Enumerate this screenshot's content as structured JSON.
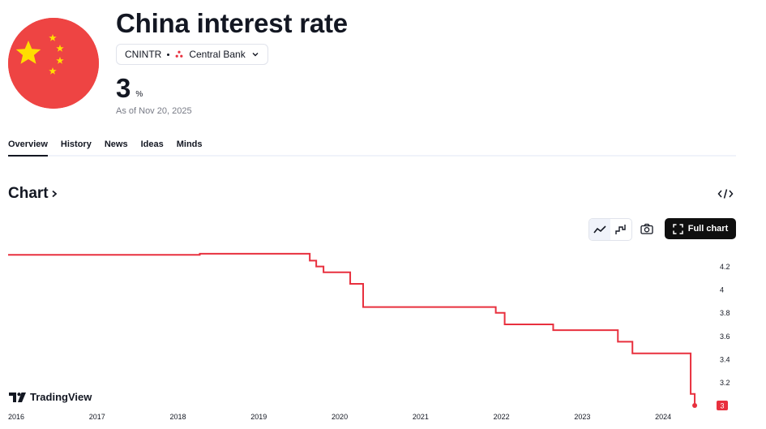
{
  "header": {
    "title": "China interest rate",
    "symbol": "CNINTR",
    "source": "Central Bank",
    "value": "3",
    "unit": "%",
    "as_of": "As of Nov 20, 2025"
  },
  "tabs": [
    {
      "label": "Overview",
      "active": true
    },
    {
      "label": "History",
      "active": false
    },
    {
      "label": "News",
      "active": false
    },
    {
      "label": "Ideas",
      "active": false
    },
    {
      "label": "Minds",
      "active": false
    }
  ],
  "section": {
    "title": "Chart"
  },
  "toolbar": {
    "full_chart_label": "Full chart"
  },
  "branding": {
    "logo_text": "TradingView"
  },
  "colors": {
    "line": "#e8303e",
    "flag_red": "#ee4443",
    "flag_star": "#ffde00"
  },
  "chart_data": {
    "type": "line",
    "step": true,
    "x_ticks": [
      "2016",
      "2017",
      "2018",
      "2019",
      "2020",
      "2021",
      "2022",
      "2023",
      "2024"
    ],
    "y_ticks": [
      "3.2",
      "3.4",
      "3.6",
      "3.8",
      "4",
      "4.2"
    ],
    "xlim": [
      2016.0,
      2024.6
    ],
    "ylim": [
      3.0,
      4.4
    ],
    "series": [
      {
        "x": [
          2016.0,
          2018.27,
          2019.63,
          2019.71,
          2019.8,
          2020.13,
          2020.29,
          2021.93,
          2022.04,
          2022.64,
          2023.44,
          2023.62,
          2024.34,
          2024.39
        ],
        "y": [
          4.3,
          4.31,
          4.25,
          4.2,
          4.15,
          4.05,
          3.85,
          3.8,
          3.7,
          3.65,
          3.55,
          3.45,
          3.1,
          3.0
        ]
      }
    ],
    "last_value_label": "3",
    "grid": false,
    "legend": "none"
  }
}
